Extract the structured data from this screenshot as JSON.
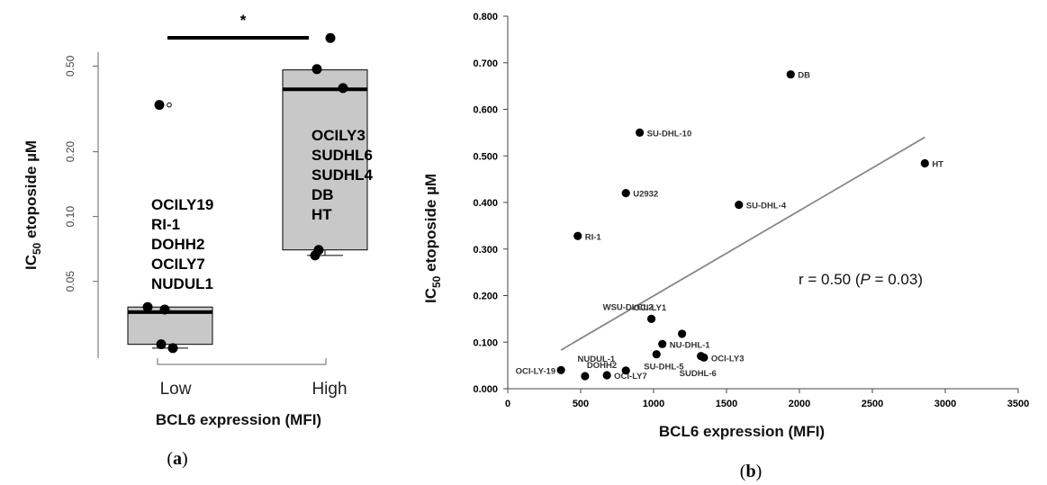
{
  "chart_data": [
    {
      "type": "box",
      "panel_label": "a",
      "xlabel": "BCL6 expression (MFI)",
      "ylabel": "IC50 etoposide µM",
      "ylabel_parts": {
        "main": "IC",
        "sub": "50",
        "rest": " etoposide µM"
      },
      "y_scale": "log",
      "ylim": [
        0.022,
        0.58
      ],
      "y_ticks": [
        0.05,
        0.1,
        0.2,
        0.5
      ],
      "y_tick_labels": [
        "0.05",
        "0.10",
        "0.20",
        "0.50"
      ],
      "categories": [
        "Low",
        "High"
      ],
      "boxes": [
        {
          "name": "Low",
          "q1": 0.0255,
          "median": 0.036,
          "q3": 0.038,
          "whisker_low": 0.0245,
          "whisker_high": 0.038
        },
        {
          "name": "High",
          "q1": 0.07,
          "median": 0.39,
          "q3": 0.48,
          "whisker_low": 0.066,
          "whisker_high": 0.48
        }
      ],
      "points": [
        {
          "group": "Low",
          "values": [
            0.33,
            0.038,
            0.037,
            0.0255,
            0.0245
          ]
        },
        {
          "group": "High",
          "values": [
            0.675,
            0.484,
            0.395,
            0.07,
            0.066
          ]
        }
      ],
      "outliers": [
        {
          "group": "Low",
          "value": 0.33
        }
      ],
      "group_labels": [
        {
          "group": "Low",
          "lines": [
            "OCILY19",
            "RI-1",
            "DOHH2",
            "OCILY7",
            "NUDUL1"
          ]
        },
        {
          "group": "High",
          "lines": [
            "OCILY3",
            "SUDHL6",
            "SUDHL4",
            "DB",
            "HT"
          ]
        }
      ],
      "significance": "*"
    },
    {
      "type": "scatter",
      "panel_label": "b",
      "xlabel": "BCL6 expression (MFI)",
      "ylabel": "IC50 etoposide µM",
      "ylabel_parts": {
        "main": "IC",
        "sub": "50",
        "rest": " etoposide µM"
      },
      "xlim": [
        0,
        3500
      ],
      "ylim": [
        0,
        0.8
      ],
      "x_ticks": [
        0,
        500,
        1000,
        1500,
        2000,
        2500,
        3000,
        3500
      ],
      "x_tick_labels": [
        "0",
        "500",
        "1000",
        "1500",
        "2000",
        "2500",
        "3000",
        "3500"
      ],
      "y_ticks": [
        0,
        0.1,
        0.2,
        0.3,
        0.4,
        0.5,
        0.6,
        0.7,
        0.8
      ],
      "y_tick_labels": [
        "0.000",
        "0.100",
        "0.200",
        "0.300",
        "0.400",
        "0.500",
        "0.600",
        "0.700",
        "0.800"
      ],
      "points": [
        {
          "label": "DB",
          "x": 1940,
          "y": 0.675,
          "pos": "right"
        },
        {
          "label": "SU-DHL-10",
          "x": 905,
          "y": 0.55,
          "pos": "right"
        },
        {
          "label": "HT",
          "x": 2860,
          "y": 0.484,
          "pos": "right"
        },
        {
          "label": "U2932",
          "x": 810,
          "y": 0.42,
          "pos": "right"
        },
        {
          "label": "SU-DHL-4",
          "x": 1585,
          "y": 0.395,
          "pos": "right"
        },
        {
          "label": "RI-1",
          "x": 480,
          "y": 0.328,
          "pos": "right"
        },
        {
          "label": "WSU-DLCL2",
          "x": 985,
          "y": 0.15,
          "pos": "aboveleft"
        },
        {
          "label": "OCI-LY1",
          "x": 1195,
          "y": 0.118,
          "pos": "aboverightfar"
        },
        {
          "label": "NU-DHL-1",
          "x": 1060,
          "y": 0.096,
          "pos": "right"
        },
        {
          "label": "SU-DHL-5",
          "x": 1020,
          "y": 0.074,
          "pos": "belowleft"
        },
        {
          "label": "OCI-LY3",
          "x": 1345,
          "y": 0.067,
          "pos": "right"
        },
        {
          "label": "SUDHL-6",
          "x": 1325,
          "y": 0.07,
          "pos": "belowleft2"
        },
        {
          "label": "NUDUL-1",
          "x": 810,
          "y": 0.039,
          "pos": "aboveleft2"
        },
        {
          "label": "OCI-LY7",
          "x": 680,
          "y": 0.029,
          "pos": "right"
        },
        {
          "label": "DOHH2",
          "x": 530,
          "y": 0.027,
          "pos": "above"
        },
        {
          "label": "OCI-LY-19",
          "x": 365,
          "y": 0.04,
          "pos": "left"
        }
      ],
      "regression": {
        "x": [
          365,
          2860
        ],
        "y": [
          0.083,
          0.54
        ]
      },
      "annotation": {
        "text": "r = 0.50 (",
        "italic": "P",
        "rest": " = 0.03)"
      }
    }
  ]
}
